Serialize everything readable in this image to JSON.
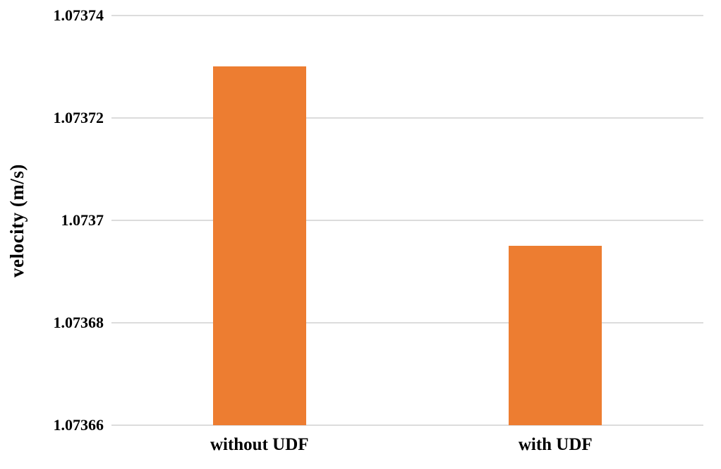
{
  "chart_data": {
    "type": "bar",
    "categories": [
      "without UDF",
      "with UDF"
    ],
    "values": [
      1.07373,
      1.073695
    ],
    "ylabel": "velocity (m/s)",
    "ylim": [
      1.07366,
      1.07374
    ],
    "yticks": [
      {
        "value": 1.07374,
        "label": "1.07374"
      },
      {
        "value": 1.07372,
        "label": "1.07372"
      },
      {
        "value": 1.0737,
        "label": "1.0737"
      },
      {
        "value": 1.07368,
        "label": "1.07368"
      },
      {
        "value": 1.07366,
        "label": "1.07366"
      }
    ],
    "grid": true,
    "legend": false,
    "bar_color": "#ED7D31",
    "gridline_color": "#DCDCDC",
    "text_color": "#000000",
    "background_color": "#FFFFFF"
  }
}
